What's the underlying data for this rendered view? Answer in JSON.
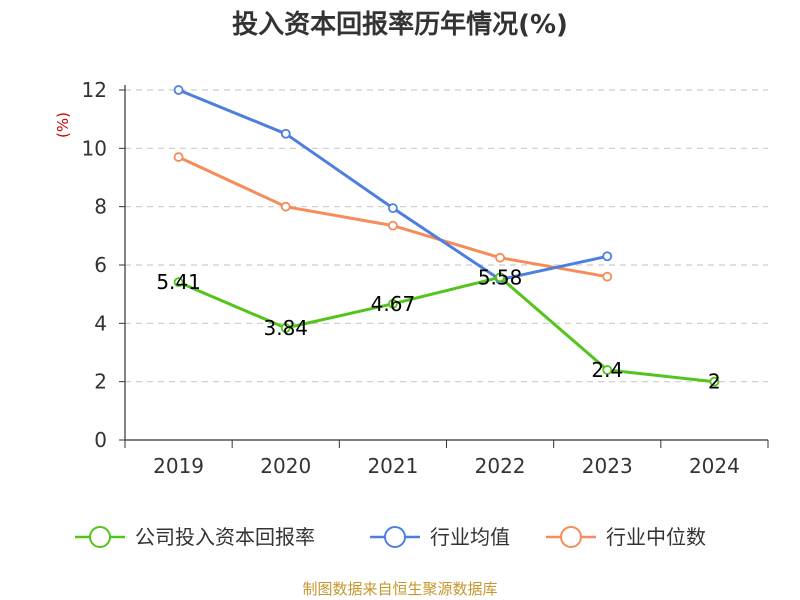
{
  "chart_data": {
    "type": "line",
    "title": "投入资本回报率历年情况(%)",
    "ylabel": "(%)",
    "xlabel": "",
    "categories": [
      "2019",
      "2020",
      "2021",
      "2022",
      "2023",
      "2024"
    ],
    "ylim": [
      0,
      12
    ],
    "yticks": [
      0,
      2,
      4,
      6,
      8,
      10,
      12
    ],
    "grid": true,
    "legend_position": "bottom",
    "series": [
      {
        "name": "公司投入资本回报率",
        "color": "#52c41a",
        "values": [
          5.41,
          3.84,
          4.67,
          5.58,
          2.4,
          2
        ],
        "labels": [
          "5.41",
          "3.84",
          "4.67",
          "5.58",
          "2.4",
          "2"
        ]
      },
      {
        "name": "行业均值",
        "color": "#4e7fdf",
        "values": [
          12.0,
          10.5,
          7.95,
          5.5,
          6.3,
          null
        ]
      },
      {
        "name": "行业中位数",
        "color": "#f58c5a",
        "values": [
          9.7,
          8.0,
          7.35,
          6.25,
          5.6,
          null
        ]
      }
    ]
  },
  "source": "制图数据来自恒生聚源数据库"
}
